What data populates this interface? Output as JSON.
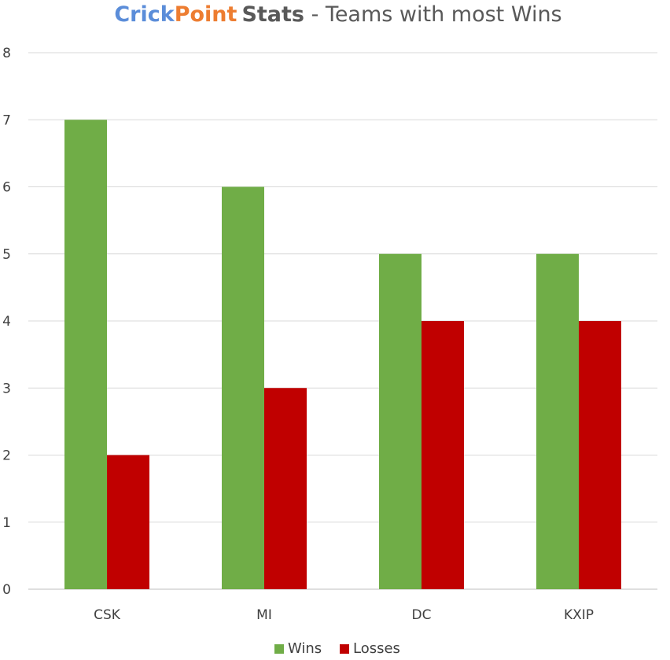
{
  "title": {
    "brand_part1": "Crick",
    "brand_part2": "Point",
    "brand_part3": "Stats",
    "rest": " - Teams with most Wins",
    "colors": {
      "part1": "#5b8dd9",
      "part2": "#ed7d31",
      "part3": "#595959",
      "rest": "#595959"
    }
  },
  "chart_data": {
    "type": "bar",
    "title": "CrickPoint Stats - Teams with most Wins",
    "categories": [
      "CSK",
      "MI",
      "DC",
      "KXIP"
    ],
    "series": [
      {
        "name": "Wins",
        "values": [
          7,
          6,
          5,
          5
        ],
        "color": "#70ad47"
      },
      {
        "name": "Losses",
        "values": [
          2,
          3,
          4,
          4
        ],
        "color": "#c00000"
      }
    ],
    "ylim": [
      0,
      8
    ],
    "yticks": [
      "0",
      "1",
      "2",
      "3",
      "4",
      "5",
      "6",
      "7",
      "8"
    ],
    "grid": true,
    "legend_position": "bottom"
  }
}
